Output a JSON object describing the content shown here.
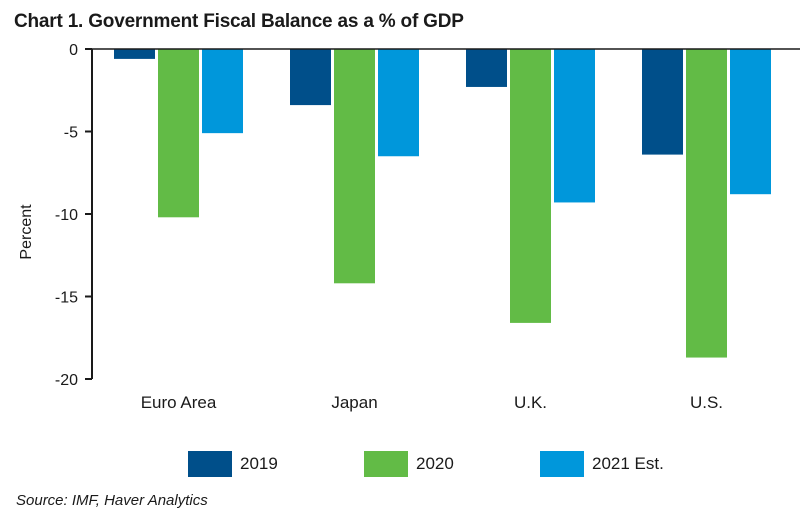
{
  "chart_data": {
    "type": "bar",
    "title": "Chart 1. Government Fiscal Balance as a % of GDP",
    "xlabel": "",
    "ylabel": "Percent",
    "ylim": [
      -20,
      0
    ],
    "yticks": [
      0,
      -5,
      -10,
      -15,
      -20
    ],
    "categories": [
      "Euro Area",
      "Japan",
      "U.K.",
      "U.S."
    ],
    "series": [
      {
        "name": "2019",
        "color": "#004f8a",
        "values": [
          -0.6,
          -3.4,
          -2.3,
          -6.4
        ]
      },
      {
        "name": "2020",
        "color": "#62bb46",
        "values": [
          -10.2,
          -14.2,
          -16.6,
          -18.7
        ]
      },
      {
        "name": "2021 Est.",
        "color": "#0097db",
        "values": [
          -5.1,
          -6.5,
          -9.3,
          -8.8
        ]
      }
    ],
    "grid": false,
    "legend": "bottom",
    "source": "Source: IMF, Haver Analytics"
  }
}
